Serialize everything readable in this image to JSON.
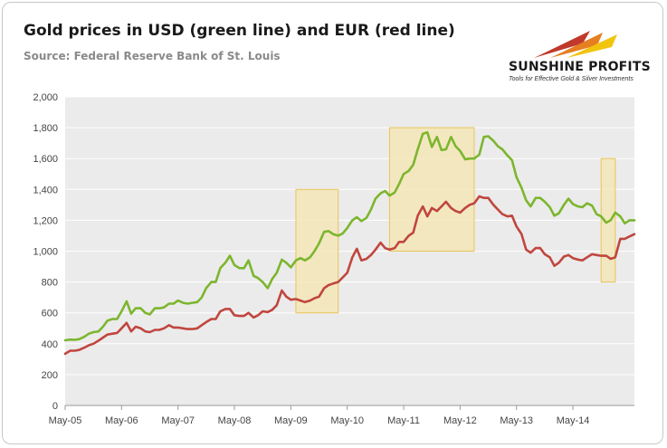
{
  "header": {
    "title": "Gold prices in USD (green line) and EUR (red line)",
    "source": "Source: Federal Reserve Bank of St. Louis"
  },
  "logo": {
    "name": "SUNSHINE PROFITS",
    "tagline": "Tools for Effective Gold & Silver Investments",
    "colors": [
      "#c0392b",
      "#e67e22",
      "#f1c40f"
    ]
  },
  "chart_data": {
    "type": "line",
    "title": "Gold prices in USD (green line) and EUR (red line)",
    "xlabel": "",
    "ylabel": "",
    "ylim": [
      0,
      2000
    ],
    "yticks": [
      0,
      200,
      400,
      600,
      800,
      1000,
      1200,
      1400,
      1600,
      1800,
      2000
    ],
    "xlim": [
      2005.33,
      2015.42
    ],
    "xticks": [
      {
        "x": 2005.33,
        "label": "May-05"
      },
      {
        "x": 2006.33,
        "label": "May-06"
      },
      {
        "x": 2007.33,
        "label": "May-07"
      },
      {
        "x": 2008.33,
        "label": "May-08"
      },
      {
        "x": 2009.33,
        "label": "May-09"
      },
      {
        "x": 2010.33,
        "label": "May-10"
      },
      {
        "x": 2011.33,
        "label": "May-11"
      },
      {
        "x": 2012.33,
        "label": "May-12"
      },
      {
        "x": 2013.33,
        "label": "May-13"
      },
      {
        "x": 2014.33,
        "label": "May-14"
      }
    ],
    "grid": true,
    "colors": {
      "usd": "#7cb62e",
      "eur": "#c0463e",
      "highlight_fill": "#f5e6b8",
      "highlight_stroke": "#e8c55a"
    },
    "highlights": [
      {
        "x0": 2009.42,
        "x1": 2010.17,
        "y0": 600,
        "y1": 1400
      },
      {
        "x0": 2011.08,
        "x1": 2012.58,
        "y0": 1000,
        "y1": 1800
      },
      {
        "x0": 2014.83,
        "x1": 2015.08,
        "y0": 800,
        "y1": 1600
      }
    ],
    "series": [
      {
        "key": "usd",
        "x": [
          2005.33,
          2005.42,
          2005.5,
          2005.58,
          2005.67,
          2005.75,
          2005.83,
          2005.92,
          2006.0,
          2006.08,
          2006.17,
          2006.25,
          2006.33,
          2006.42,
          2006.5,
          2006.58,
          2006.67,
          2006.75,
          2006.83,
          2006.92,
          2007.0,
          2007.08,
          2007.17,
          2007.25,
          2007.33,
          2007.42,
          2007.5,
          2007.58,
          2007.67,
          2007.75,
          2007.83,
          2007.92,
          2008.0,
          2008.08,
          2008.17,
          2008.25,
          2008.33,
          2008.42,
          2008.5,
          2008.58,
          2008.67,
          2008.75,
          2008.83,
          2008.92,
          2009.0,
          2009.08,
          2009.17,
          2009.25,
          2009.33,
          2009.42,
          2009.5,
          2009.58,
          2009.67,
          2009.75,
          2009.83,
          2009.92,
          2010.0,
          2010.08,
          2010.17,
          2010.25,
          2010.33,
          2010.42,
          2010.5,
          2010.58,
          2010.67,
          2010.75,
          2010.83,
          2010.92,
          2011.0,
          2011.08,
          2011.17,
          2011.25,
          2011.33,
          2011.42,
          2011.5,
          2011.58,
          2011.67,
          2011.75,
          2011.83,
          2011.92,
          2012.0,
          2012.08,
          2012.17,
          2012.25,
          2012.33,
          2012.42,
          2012.5,
          2012.58,
          2012.67,
          2012.75,
          2012.83,
          2012.92,
          2013.0,
          2013.08,
          2013.17,
          2013.25,
          2013.33,
          2013.42,
          2013.5,
          2013.58,
          2013.67,
          2013.75,
          2013.83,
          2013.92,
          2014.0,
          2014.08,
          2014.17,
          2014.25,
          2014.33,
          2014.42,
          2014.5,
          2014.58,
          2014.67,
          2014.75,
          2014.83,
          2014.92,
          2015.0,
          2015.08,
          2015.17,
          2015.25,
          2015.33,
          2015.42
        ],
        "values": [
          422,
          427,
          425,
          430,
          445,
          465,
          475,
          480,
          510,
          550,
          560,
          560,
          610,
          675,
          595,
          630,
          630,
          600,
          590,
          630,
          630,
          635,
          660,
          660,
          680,
          665,
          660,
          665,
          670,
          700,
          760,
          800,
          800,
          890,
          925,
          970,
          910,
          890,
          890,
          940,
          840,
          825,
          800,
          760,
          820,
          860,
          945,
          925,
          895,
          940,
          955,
          940,
          960,
          1000,
          1050,
          1125,
          1130,
          1110,
          1100,
          1115,
          1150,
          1200,
          1220,
          1195,
          1215,
          1270,
          1340,
          1375,
          1390,
          1360,
          1380,
          1435,
          1500,
          1520,
          1560,
          1660,
          1760,
          1770,
          1675,
          1740,
          1655,
          1660,
          1740,
          1680,
          1650,
          1595,
          1600,
          1600,
          1625,
          1740,
          1745,
          1715,
          1680,
          1660,
          1620,
          1590,
          1480,
          1410,
          1330,
          1290,
          1345,
          1345,
          1320,
          1285,
          1230,
          1245,
          1300,
          1340,
          1305,
          1290,
          1285,
          1310,
          1295,
          1240,
          1225,
          1185,
          1200,
          1250,
          1225,
          1180,
          1200,
          1200
        ]
      },
      {
        "key": "eur",
        "x": [
          2005.33,
          2005.42,
          2005.5,
          2005.58,
          2005.67,
          2005.75,
          2005.83,
          2005.92,
          2006.0,
          2006.08,
          2006.17,
          2006.25,
          2006.33,
          2006.42,
          2006.5,
          2006.58,
          2006.67,
          2006.75,
          2006.83,
          2006.92,
          2007.0,
          2007.08,
          2007.17,
          2007.25,
          2007.33,
          2007.42,
          2007.5,
          2007.58,
          2007.67,
          2007.75,
          2007.83,
          2007.92,
          2008.0,
          2008.08,
          2008.17,
          2008.25,
          2008.33,
          2008.42,
          2008.5,
          2008.58,
          2008.67,
          2008.75,
          2008.83,
          2008.92,
          2009.0,
          2009.08,
          2009.17,
          2009.25,
          2009.33,
          2009.42,
          2009.5,
          2009.58,
          2009.67,
          2009.75,
          2009.83,
          2009.92,
          2010.0,
          2010.08,
          2010.17,
          2010.25,
          2010.33,
          2010.42,
          2010.5,
          2010.58,
          2010.67,
          2010.75,
          2010.83,
          2010.92,
          2011.0,
          2011.08,
          2011.17,
          2011.25,
          2011.33,
          2011.42,
          2011.5,
          2011.58,
          2011.67,
          2011.75,
          2011.83,
          2011.92,
          2012.0,
          2012.08,
          2012.17,
          2012.25,
          2012.33,
          2012.42,
          2012.5,
          2012.58,
          2012.67,
          2012.75,
          2012.83,
          2012.92,
          2013.0,
          2013.08,
          2013.17,
          2013.25,
          2013.33,
          2013.42,
          2013.5,
          2013.58,
          2013.67,
          2013.75,
          2013.83,
          2013.92,
          2014.0,
          2014.08,
          2014.17,
          2014.25,
          2014.33,
          2014.42,
          2014.5,
          2014.58,
          2014.67,
          2014.75,
          2014.83,
          2014.92,
          2015.0,
          2015.08,
          2015.17,
          2015.25,
          2015.33,
          2015.42
        ],
        "values": [
          335,
          355,
          355,
          360,
          375,
          390,
          400,
          420,
          440,
          460,
          465,
          470,
          500,
          535,
          480,
          510,
          500,
          480,
          475,
          490,
          490,
          500,
          520,
          505,
          505,
          500,
          495,
          495,
          500,
          520,
          540,
          560,
          560,
          610,
          625,
          625,
          585,
          580,
          580,
          600,
          570,
          585,
          610,
          605,
          620,
          650,
          745,
          705,
          685,
          690,
          680,
          670,
          680,
          695,
          705,
          760,
          780,
          790,
          800,
          830,
          860,
          960,
          1015,
          940,
          950,
          975,
          1010,
          1055,
          1020,
          1010,
          1020,
          1060,
          1060,
          1100,
          1120,
          1230,
          1290,
          1225,
          1280,
          1260,
          1290,
          1320,
          1280,
          1260,
          1250,
          1280,
          1300,
          1310,
          1355,
          1345,
          1345,
          1300,
          1270,
          1240,
          1225,
          1230,
          1160,
          1110,
          1010,
          990,
          1020,
          1020,
          980,
          960,
          905,
          925,
          965,
          975,
          955,
          945,
          940,
          960,
          980,
          975,
          970,
          970,
          950,
          960,
          1080,
          1080,
          1095,
          1110
        ]
      }
    ]
  }
}
